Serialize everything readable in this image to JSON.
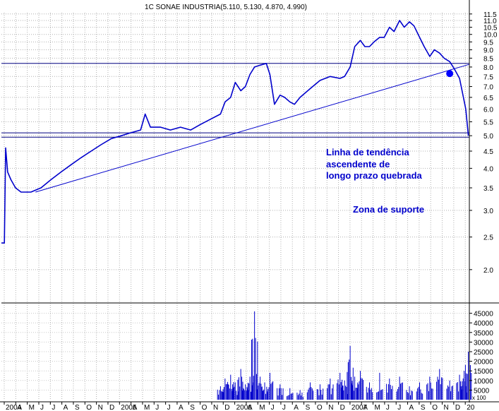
{
  "chart_data": {
    "type": "line",
    "title": "1C SONAE INDUSTRIA(5.110, 5.130, 4.870, 4.990)",
    "price_axis": {
      "ylim": [
        1.6,
        11.6
      ],
      "scale": "log",
      "tick_labels": [
        "11.5",
        "11.0",
        "10.5",
        "10.0",
        "9.5",
        "9.0",
        "8.5",
        "8.0",
        "7.5",
        "7.0",
        "6.5",
        "6.0",
        "5.5",
        "5.0",
        "4.5",
        "4.0",
        "3.5",
        "3.0",
        "2.5",
        "2.0"
      ]
    },
    "volume_axis": {
      "ylim": [
        0,
        50000
      ],
      "tick_labels": [
        "45000",
        "40000",
        "35000",
        "30000",
        "25000",
        "20000",
        "15000",
        "10000",
        "5000"
      ],
      "scale_note": "x 100"
    },
    "x_axis": {
      "labels": [
        "2004",
        "A",
        "M",
        "J",
        "J",
        "A",
        "S",
        "O",
        "N",
        "D",
        "2005",
        "A",
        "M",
        "J",
        "J",
        "A",
        "S",
        "O",
        "N",
        "D",
        "2006",
        "A",
        "M",
        "J",
        "J",
        "A",
        "S",
        "O",
        "N",
        "D",
        "2007",
        "A",
        "M",
        "J",
        "J",
        "A",
        "S",
        "O",
        "N",
        "D",
        "20"
      ],
      "start_date": "2004-02-01",
      "end_date": "2007-12-31"
    },
    "series": [
      {
        "color": "#0000cc",
        "x": [
          "2004-02-01",
          "2004-02-10",
          "2004-02-14",
          "2004-02-20",
          "2004-03-01",
          "2004-03-15",
          "2004-04-01",
          "2004-05-01",
          "2004-06-01",
          "2004-07-01",
          "2004-08-01",
          "2004-09-01",
          "2004-10-01",
          "2004-11-01",
          "2004-12-01",
          "2005-01-01",
          "2005-02-01",
          "2005-03-01",
          "2005-04-01",
          "2005-04-15",
          "2005-05-01",
          "2005-06-01",
          "2005-07-01",
          "2005-08-01",
          "2005-09-01",
          "2005-10-01",
          "2005-11-01",
          "2005-12-01",
          "2005-12-15",
          "2006-01-01",
          "2006-01-15",
          "2006-02-01",
          "2006-02-15",
          "2006-03-01",
          "2006-03-15",
          "2006-04-01",
          "2006-04-20",
          "2006-05-01",
          "2006-05-15",
          "2006-06-01",
          "2006-06-15",
          "2006-07-01",
          "2006-07-15",
          "2006-08-01",
          "2006-09-01",
          "2006-10-01",
          "2006-11-01",
          "2006-12-01",
          "2006-12-15",
          "2007-01-01",
          "2007-01-15",
          "2007-02-01",
          "2007-02-15",
          "2007-03-01",
          "2007-03-15",
          "2007-04-01",
          "2007-04-15",
          "2007-05-01",
          "2007-05-15",
          "2007-06-01",
          "2007-06-15",
          "2007-07-01",
          "2007-07-15",
          "2007-08-01",
          "2007-08-15",
          "2007-09-01",
          "2007-09-15",
          "2007-10-01",
          "2007-10-15",
          "2007-11-01",
          "2007-11-15",
          "2007-12-01",
          "2007-12-10",
          "2007-12-20",
          "2007-12-28"
        ],
        "values": [
          2.4,
          2.4,
          4.6,
          3.9,
          3.7,
          3.5,
          3.4,
          3.4,
          3.5,
          3.7,
          3.9,
          4.1,
          4.3,
          4.5,
          4.7,
          4.9,
          5.0,
          5.1,
          5.2,
          5.8,
          5.3,
          5.3,
          5.2,
          5.3,
          5.2,
          5.4,
          5.6,
          5.8,
          6.3,
          6.5,
          7.2,
          6.8,
          7.0,
          7.6,
          8.0,
          8.1,
          8.2,
          7.6,
          6.2,
          6.6,
          6.5,
          6.3,
          6.2,
          6.5,
          6.9,
          7.3,
          7.5,
          7.4,
          7.5,
          8.0,
          9.2,
          9.6,
          9.2,
          9.2,
          9.5,
          9.8,
          9.8,
          10.5,
          10.2,
          11.0,
          10.5,
          10.9,
          10.6,
          9.8,
          9.2,
          8.6,
          9.0,
          8.8,
          8.5,
          8.3,
          7.9,
          7.4,
          6.7,
          6.0,
          5.0
        ]
      }
    ],
    "volume": {
      "x": [
        "2005-12-01",
        "2005-12-15",
        "2006-01-01",
        "2006-01-15",
        "2006-02-01",
        "2006-02-15",
        "2006-03-01",
        "2006-03-15",
        "2006-04-01",
        "2006-04-15",
        "2006-05-01",
        "2006-06-01",
        "2006-07-01",
        "2006-08-01",
        "2006-09-01",
        "2006-10-01",
        "2006-11-01",
        "2006-12-01",
        "2006-12-15",
        "2007-01-01",
        "2007-01-15",
        "2007-02-01",
        "2007-03-01",
        "2007-04-01",
        "2007-05-01",
        "2007-06-01",
        "2007-07-01",
        "2007-08-01",
        "2007-09-01",
        "2007-10-01",
        "2007-11-01",
        "2007-12-01",
        "2007-12-15",
        "2007-12-28"
      ],
      "values": [
        7000,
        11000,
        13000,
        9000,
        16000,
        8000,
        12000,
        46000,
        12000,
        9000,
        14000,
        8000,
        6000,
        5000,
        9000,
        8000,
        11000,
        14000,
        10000,
        28000,
        12000,
        15000,
        9000,
        14000,
        11000,
        12000,
        7000,
        9000,
        12000,
        16000,
        10000,
        13000,
        15000,
        25000
      ]
    },
    "horizontal_lines": [
      8.2,
      5.1,
      4.95
    ],
    "trendline": {
      "x": [
        "2004-05-15",
        "2007-12-31"
      ],
      "values": [
        3.4,
        8.15
      ]
    },
    "marker": {
      "x": "2007-11-01",
      "value": 7.65,
      "color": "#0000ff"
    },
    "annotations": [
      {
        "text": "Linha de tendência"
      },
      {
        "text": "ascendente de"
      },
      {
        "text": "longo prazo quebrada"
      },
      {
        "text": "Zona de suporte"
      }
    ],
    "grid": true
  }
}
